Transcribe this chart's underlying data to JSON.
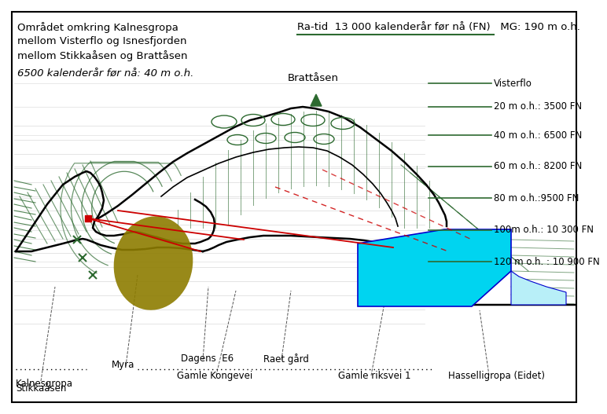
{
  "title_left": [
    "Området omkring Kalnesgropa",
    "mellom Visterflo og Isnesfjorden",
    "mellom Stikkaåsen og Brattåsen",
    "6500 kalenderår før nå: 40 m o.h."
  ],
  "title_right": "Ra-tid  13 000 kalenderår før nå (FN)   MG: 190 m o.h.",
  "underline_right": true,
  "elev_lines": [
    [
      0.638,
      "120 m o.h. : 10 900 FN"
    ],
    [
      0.558,
      "100m o.h.: 10 300 FN"
    ],
    [
      0.478,
      "80 m o.h.:9500 FN"
    ],
    [
      0.398,
      "60 m o.h.: 8200 FN"
    ],
    [
      0.32,
      "40 m o.h.: 6500 FN"
    ],
    [
      0.248,
      "20 m o.h.: 3500 FN"
    ],
    [
      0.19,
      "Visterflo"
    ]
  ],
  "bg_color": "#ffffff",
  "green": "#2d6a30",
  "dark_green": "#1a4a1d",
  "olive": "#8d7c00",
  "red": "#cc0000",
  "cyan": "#00d4f0",
  "light_cyan": "#b8eff8",
  "blue": "#0000cc"
}
